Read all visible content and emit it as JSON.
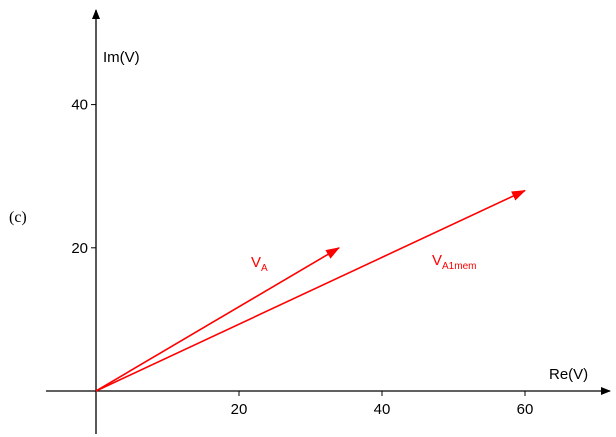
{
  "panel_label": "(c)",
  "chart_data": {
    "type": "phasor",
    "xlabel": "Re(V)",
    "ylabel": "Im(V)",
    "xticks": [
      20,
      40,
      60
    ],
    "yticks": [
      20,
      40
    ],
    "xlim": [
      -7,
      70
    ],
    "ylim": [
      -6,
      52
    ],
    "vectors": [
      {
        "label": "V",
        "subscript": "A",
        "x": 34,
        "y": 20,
        "color": "#ff0000"
      },
      {
        "label": "V",
        "subscript": "A1mem",
        "x": 60,
        "y": 28,
        "color": "#ff0000"
      }
    ],
    "label_positions": [
      "near-A",
      "near-A1mem"
    ]
  }
}
